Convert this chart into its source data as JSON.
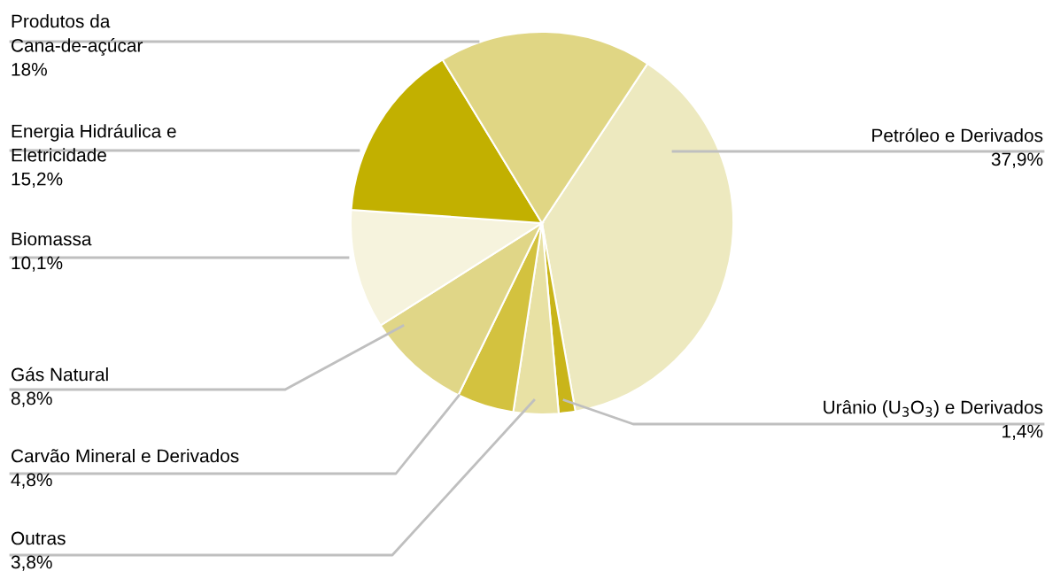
{
  "chart_data": {
    "type": "pie",
    "categories": [
      "Petróleo e Derivados",
      "Urânio (U$_{3}$O$_{3}$) e Derivados",
      "Outras",
      "Carvão Mineral e Derivados",
      "Gás Natural",
      "Biomassa",
      "Energia Hidráulica e\nEletricidade",
      "Produtos da\nCana-de-açúcar"
    ],
    "values": [
      37.9,
      1.4,
      3.8,
      4.8,
      8.8,
      10.1,
      15.2,
      18
    ],
    "value_labels": [
      "37,9%",
      "1,4%",
      "3,8%",
      "4,8%",
      "8,8%",
      "10,1%",
      "15,2%",
      "18%"
    ],
    "colors": [
      "#ede9bf",
      "#c9b51a",
      "#e8e1a4",
      "#d3c23f",
      "#e0d687",
      "#f6f3dd",
      "#c2b000",
      "#e0d684"
    ]
  }
}
